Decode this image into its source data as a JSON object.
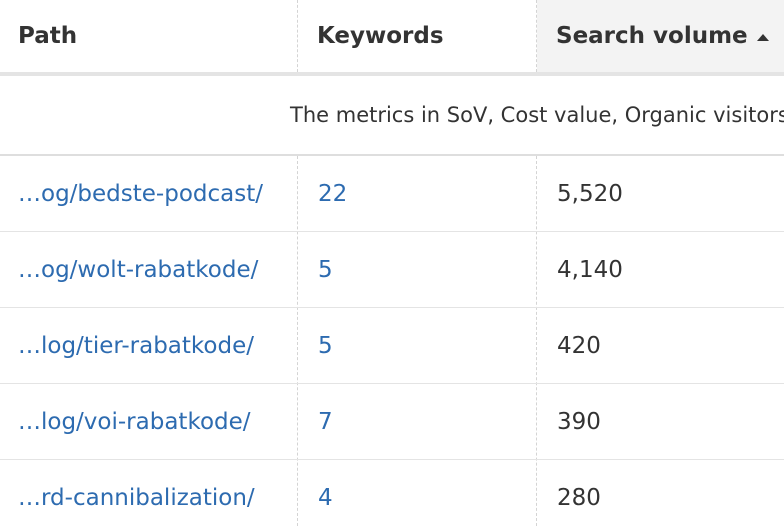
{
  "header": {
    "path": "Path",
    "keywords": "Keywords",
    "search_volume": "Search volume",
    "sort_icon": "caret-up-icon"
  },
  "notice": "The metrics in SoV, Cost value, Organic visitors",
  "rows": [
    {
      "path": "…og/bedste-podcast/",
      "keywords": "22",
      "search_volume": "5,520"
    },
    {
      "path": "…og/wolt-rabatkode/",
      "keywords": "5",
      "search_volume": "4,140"
    },
    {
      "path": "…log/tier-rabatkode/",
      "keywords": "5",
      "search_volume": "420"
    },
    {
      "path": "…log/voi-rabatkode/",
      "keywords": "7",
      "search_volume": "390"
    },
    {
      "path": "…rd-cannibalization/",
      "keywords": "4",
      "search_volume": "280"
    }
  ],
  "colors": {
    "link": "#2d6bb0",
    "text": "#333333",
    "sorted_header_bg": "#f3f3f3"
  }
}
